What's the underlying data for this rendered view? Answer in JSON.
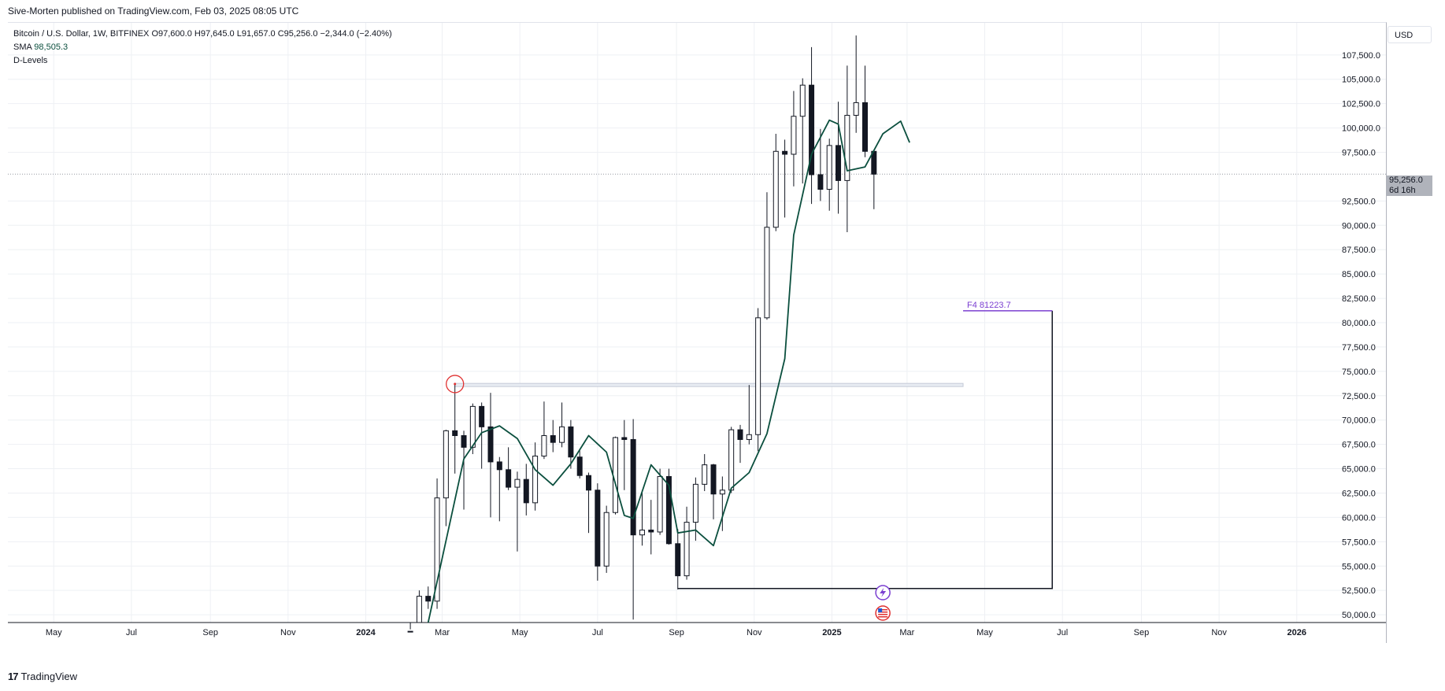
{
  "header": {
    "published_line": "Sive-Morten published on TradingView.com, Feb 03, 2025 08:05 UTC"
  },
  "legend": {
    "symbol_line": "Bitcoin / U.S. Dollar, 1W, BITFINEX",
    "ohlc": "O97,600.0  H97,645.0  L91,657.0  C95,256.0  −2,344.0 (−2.40%)",
    "sma_label": "SMA",
    "sma_value": "98,505.3",
    "indicator_2": "D-Levels"
  },
  "price_scale": {
    "currency_button": "USD",
    "last_price": "95,256.0",
    "countdown": "6d 16h"
  },
  "footer": {
    "brand": "TradingView",
    "logo_glyph": "17"
  },
  "chart_data": {
    "type": "candlestick",
    "symbol": "Bitcoin / U.S. Dollar",
    "timeframe": "1W",
    "exchange": "BITFINEX",
    "y_ticks": [
      "107,500.0",
      "105,000.0",
      "102,500.0",
      "100,000.0",
      "97,500.0",
      "92,500.0",
      "90,000.0",
      "87,500.0",
      "85,000.0",
      "82,500.0",
      "80,000.0",
      "77,500.0",
      "75,000.0",
      "72,500.0",
      "70,000.0",
      "67,500.0",
      "65,000.0",
      "62,500.0",
      "60,000.0",
      "57,500.0",
      "55,000.0",
      "52,500.0",
      "50,000.0"
    ],
    "y_tick_values": [
      107500,
      105000,
      102500,
      100000,
      97500,
      92500,
      90000,
      87500,
      85000,
      82500,
      80000,
      77500,
      75000,
      72500,
      70000,
      67500,
      65000,
      62500,
      60000,
      57500,
      55000,
      52500,
      50000
    ],
    "ylim": [
      49200,
      110800
    ],
    "x_ticks": [
      "May",
      "Jul",
      "Sep",
      "Nov",
      "2024",
      "Mar",
      "May",
      "Jul",
      "Sep",
      "Nov",
      "2025",
      "Mar",
      "May",
      "Jul",
      "Sep",
      "Nov",
      "2026"
    ],
    "x_tick_dates": [
      "2023-05-01",
      "2023-07-01",
      "2023-09-01",
      "2023-11-01",
      "2024-01-01",
      "2024-03-01",
      "2024-05-01",
      "2024-07-01",
      "2024-09-01",
      "2024-11-01",
      "2025-01-01",
      "2025-03-01",
      "2025-05-01",
      "2025-07-01",
      "2025-09-01",
      "2025-11-01",
      "2026-01-01"
    ],
    "x_range": [
      "2023-03-26",
      "2026-03-12"
    ],
    "candles": [
      {
        "date": "2024-02-05",
        "o": 43000,
        "h": 48500,
        "l": 42800,
        "c": 48300
      },
      {
        "date": "2024-02-12",
        "o": 48300,
        "h": 52500,
        "l": 47900,
        "c": 51900
      },
      {
        "date": "2024-02-19",
        "o": 51900,
        "h": 52900,
        "l": 50600,
        "c": 51400
      },
      {
        "date": "2024-02-26",
        "o": 51400,
        "h": 64000,
        "l": 50600,
        "c": 62000
      },
      {
        "date": "2024-03-04",
        "o": 62000,
        "h": 69000,
        "l": 59100,
        "c": 68900
      },
      {
        "date": "2024-03-11",
        "o": 68900,
        "h": 73700,
        "l": 64500,
        "c": 68400
      },
      {
        "date": "2024-03-18",
        "o": 68400,
        "h": 68900,
        "l": 60800,
        "c": 67200
      },
      {
        "date": "2024-03-25",
        "o": 67200,
        "h": 71700,
        "l": 66500,
        "c": 71400
      },
      {
        "date": "2024-04-01",
        "o": 71400,
        "h": 71800,
        "l": 65000,
        "c": 69300
      },
      {
        "date": "2024-04-08",
        "o": 69300,
        "h": 72800,
        "l": 60000,
        "c": 65700
      },
      {
        "date": "2024-04-15",
        "o": 65700,
        "h": 66200,
        "l": 59600,
        "c": 64900
      },
      {
        "date": "2024-04-22",
        "o": 64900,
        "h": 67200,
        "l": 62800,
        "c": 63100
      },
      {
        "date": "2024-04-29",
        "o": 63100,
        "h": 64700,
        "l": 56500,
        "c": 63900
      },
      {
        "date": "2024-05-06",
        "o": 63900,
        "h": 65500,
        "l": 60200,
        "c": 61500
      },
      {
        "date": "2024-05-13",
        "o": 61500,
        "h": 67700,
        "l": 60700,
        "c": 66300
      },
      {
        "date": "2024-05-20",
        "o": 66300,
        "h": 71900,
        "l": 66000,
        "c": 68400
      },
      {
        "date": "2024-05-27",
        "o": 68400,
        "h": 70000,
        "l": 66700,
        "c": 67700
      },
      {
        "date": "2024-06-03",
        "o": 67700,
        "h": 71800,
        "l": 67200,
        "c": 69300
      },
      {
        "date": "2024-06-10",
        "o": 69300,
        "h": 70000,
        "l": 65000,
        "c": 66200
      },
      {
        "date": "2024-06-17",
        "o": 66200,
        "h": 66900,
        "l": 64000,
        "c": 64300
      },
      {
        "date": "2024-06-24",
        "o": 64300,
        "h": 64600,
        "l": 58400,
        "c": 62800
      },
      {
        "date": "2024-07-01",
        "o": 62800,
        "h": 63500,
        "l": 53500,
        "c": 55000
      },
      {
        "date": "2024-07-08",
        "o": 55000,
        "h": 61200,
        "l": 54300,
        "c": 60500
      },
      {
        "date": "2024-07-15",
        "o": 60500,
        "h": 68300,
        "l": 60300,
        "c": 68200
      },
      {
        "date": "2024-07-22",
        "o": 68200,
        "h": 70000,
        "l": 62800,
        "c": 68000
      },
      {
        "date": "2024-07-29",
        "o": 68000,
        "h": 70100,
        "l": 49500,
        "c": 58200
      },
      {
        "date": "2024-08-05",
        "o": 58200,
        "h": 62800,
        "l": 57100,
        "c": 58700
      },
      {
        "date": "2024-08-12",
        "o": 58700,
        "h": 61800,
        "l": 56200,
        "c": 58500
      },
      {
        "date": "2024-08-19",
        "o": 58500,
        "h": 65000,
        "l": 58200,
        "c": 64200
      },
      {
        "date": "2024-08-26",
        "o": 64200,
        "h": 65000,
        "l": 57200,
        "c": 57300
      },
      {
        "date": "2024-09-02",
        "o": 57300,
        "h": 58800,
        "l": 52600,
        "c": 54000
      },
      {
        "date": "2024-09-09",
        "o": 54000,
        "h": 61100,
        "l": 53600,
        "c": 59500
      },
      {
        "date": "2024-09-16",
        "o": 59500,
        "h": 64100,
        "l": 57600,
        "c": 63400
      },
      {
        "date": "2024-09-23",
        "o": 63400,
        "h": 66500,
        "l": 62700,
        "c": 65400
      },
      {
        "date": "2024-09-30",
        "o": 65400,
        "h": 65500,
        "l": 59800,
        "c": 62400
      },
      {
        "date": "2024-10-07",
        "o": 62400,
        "h": 64200,
        "l": 58600,
        "c": 62800
      },
      {
        "date": "2024-10-14",
        "o": 62800,
        "h": 69300,
        "l": 62500,
        "c": 69000
      },
      {
        "date": "2024-10-21",
        "o": 69000,
        "h": 69500,
        "l": 65600,
        "c": 68000
      },
      {
        "date": "2024-10-28",
        "o": 68000,
        "h": 73600,
        "l": 67500,
        "c": 68500
      },
      {
        "date": "2024-11-04",
        "o": 68500,
        "h": 81500,
        "l": 66800,
        "c": 80500
      },
      {
        "date": "2024-11-11",
        "o": 80500,
        "h": 93400,
        "l": 80300,
        "c": 89800
      },
      {
        "date": "2024-11-18",
        "o": 89800,
        "h": 99400,
        "l": 89400,
        "c": 97600
      },
      {
        "date": "2024-11-25",
        "o": 97600,
        "h": 98800,
        "l": 90800,
        "c": 97300
      },
      {
        "date": "2024-12-02",
        "o": 97300,
        "h": 103800,
        "l": 94000,
        "c": 101200
      },
      {
        "date": "2024-12-09",
        "o": 101200,
        "h": 105100,
        "l": 94300,
        "c": 104400
      },
      {
        "date": "2024-12-16",
        "o": 104400,
        "h": 108300,
        "l": 92200,
        "c": 95200
      },
      {
        "date": "2024-12-23",
        "o": 95200,
        "h": 99900,
        "l": 92500,
        "c": 93700
      },
      {
        "date": "2024-12-30",
        "o": 93700,
        "h": 98900,
        "l": 91500,
        "c": 98200
      },
      {
        "date": "2025-01-06",
        "o": 98200,
        "h": 102700,
        "l": 91200,
        "c": 94600
      },
      {
        "date": "2025-01-13",
        "o": 94600,
        "h": 106400,
        "l": 89300,
        "c": 101300
      },
      {
        "date": "2025-01-20",
        "o": 101300,
        "h": 109500,
        "l": 99500,
        "c": 102600
      },
      {
        "date": "2025-01-27",
        "o": 102600,
        "h": 106400,
        "l": 97000,
        "c": 97600
      },
      {
        "date": "2025-02-03",
        "o": 97600,
        "h": 97645,
        "l": 91657,
        "c": 95256
      }
    ],
    "sma": {
      "label": "SMA",
      "color": "#0b4f3e",
      "points": [
        {
          "date": "2024-02-19",
          "v": 48200
        },
        {
          "date": "2024-03-04",
          "v": 57600
        },
        {
          "date": "2024-03-18",
          "v": 66000
        },
        {
          "date": "2024-04-01",
          "v": 68700
        },
        {
          "date": "2024-04-15",
          "v": 69400
        },
        {
          "date": "2024-04-29",
          "v": 68100
        },
        {
          "date": "2024-05-13",
          "v": 64900
        },
        {
          "date": "2024-05-27",
          "v": 63300
        },
        {
          "date": "2024-06-10",
          "v": 65500
        },
        {
          "date": "2024-06-24",
          "v": 68400
        },
        {
          "date": "2024-07-08",
          "v": 66700
        },
        {
          "date": "2024-07-22",
          "v": 60200
        },
        {
          "date": "2024-07-29",
          "v": 59900
        },
        {
          "date": "2024-08-12",
          "v": 65400
        },
        {
          "date": "2024-08-26",
          "v": 63300
        },
        {
          "date": "2024-09-02",
          "v": 58400
        },
        {
          "date": "2024-09-16",
          "v": 58700
        },
        {
          "date": "2024-09-30",
          "v": 57100
        },
        {
          "date": "2024-10-14",
          "v": 63000
        },
        {
          "date": "2024-10-28",
          "v": 64600
        },
        {
          "date": "2024-11-11",
          "v": 68600
        },
        {
          "date": "2024-11-25",
          "v": 76300
        },
        {
          "date": "2024-12-02",
          "v": 89000
        },
        {
          "date": "2024-12-16",
          "v": 97300
        },
        {
          "date": "2024-12-30",
          "v": 100800
        },
        {
          "date": "2025-01-06",
          "v": 100400
        },
        {
          "date": "2025-01-13",
          "v": 95600
        },
        {
          "date": "2025-01-27",
          "v": 96000
        },
        {
          "date": "2025-02-10",
          "v": 99400
        },
        {
          "date": "2025-02-24",
          "v": 100700
        },
        {
          "date": "2025-03-03",
          "v": 98500
        }
      ]
    },
    "annotations": {
      "horizontal_level": {
        "value": 73600,
        "from": "2024-03-11",
        "to": "2025-04-14"
      },
      "circle_marker": {
        "date": "2024-03-11",
        "value": 73700
      },
      "fib_label": "F4",
      "fib_value": "81223.7",
      "fib_level": 81223.7,
      "fib_label_from": "2025-04-14",
      "target_box": {
        "from": "2024-09-02",
        "to": "2025-06-23",
        "top": 81223.7,
        "bottom": 52700
      }
    }
  }
}
